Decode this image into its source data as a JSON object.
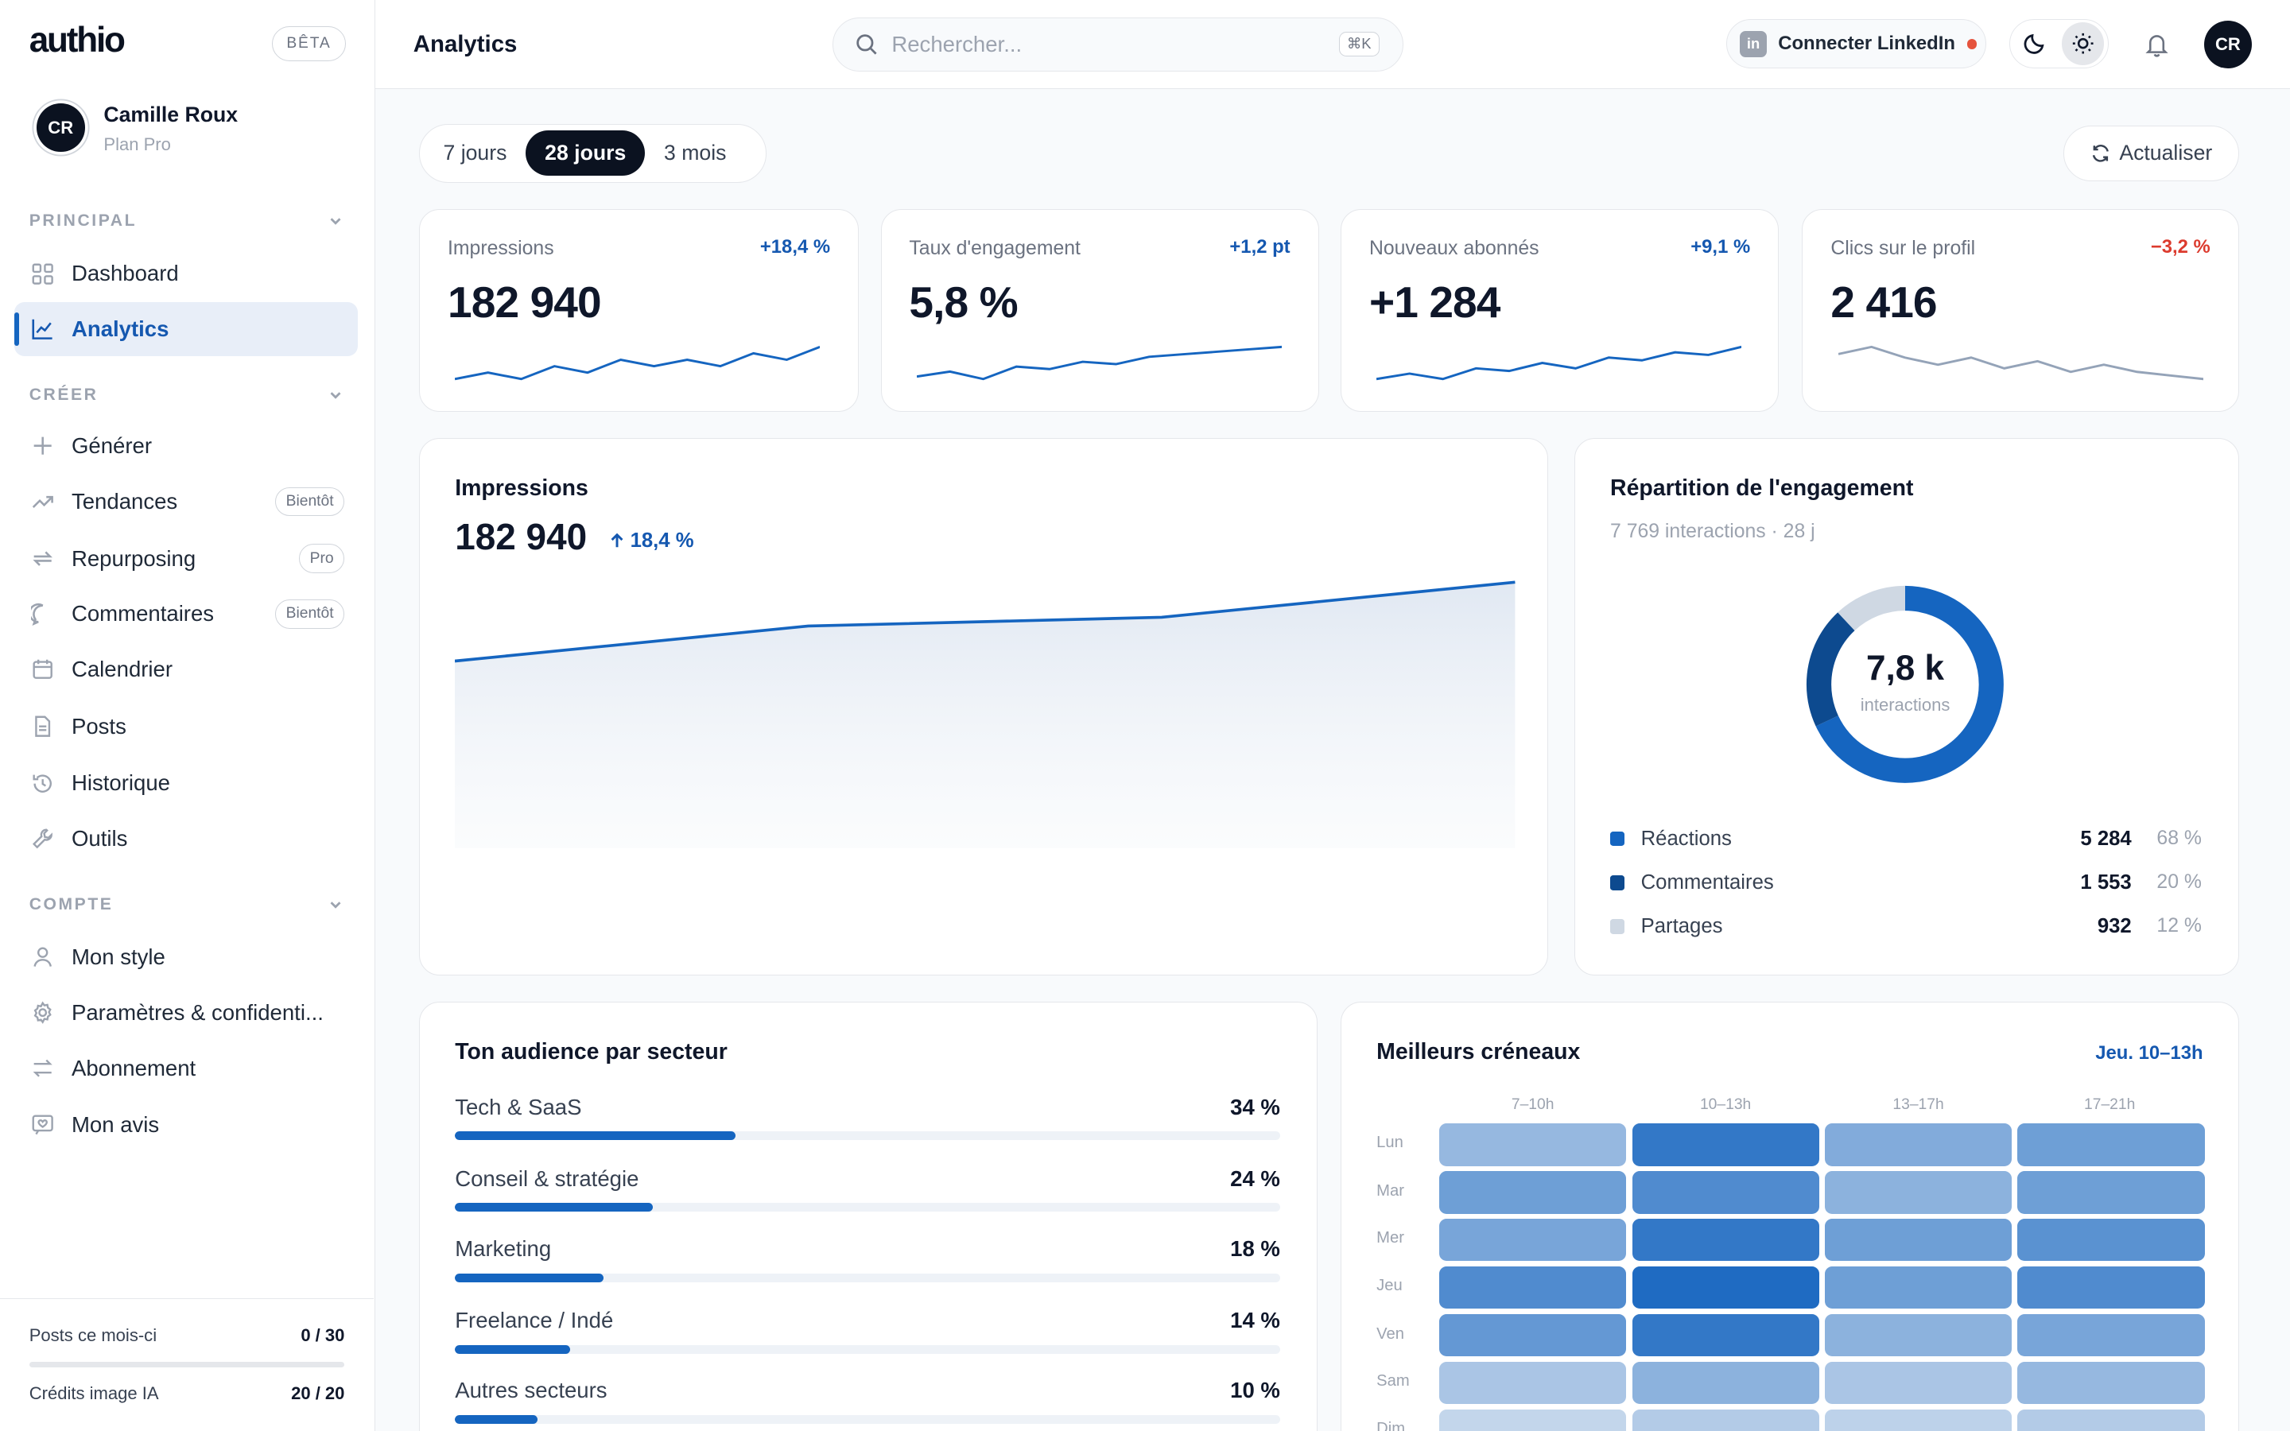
{
  "sidebar": {
    "brand": "authio",
    "beta": "BÊTA",
    "user": {
      "initials": "CR",
      "name": "Camille Roux",
      "plan": "Plan Pro"
    },
    "sections": {
      "principal": "PRINCIPAL",
      "creer": "CRÉER",
      "compte": "COMPTE"
    },
    "items": [
      {
        "label": "Dashboard",
        "icon": "grid-icon"
      },
      {
        "label": "Analytics",
        "icon": "chart-line-icon",
        "active": true
      },
      {
        "label": "Générer",
        "icon": "plus-icon"
      },
      {
        "label": "Tendances",
        "icon": "trending-up-icon",
        "tag": "Bientôt"
      },
      {
        "label": "Repurposing",
        "icon": "repeat-icon",
        "tag": "Pro"
      },
      {
        "label": "Commentaires",
        "icon": "comment-icon",
        "tag": "Bientôt"
      },
      {
        "label": "Calendrier",
        "icon": "calendar-icon"
      },
      {
        "label": "Posts",
        "icon": "file-icon"
      },
      {
        "label": "Historique",
        "icon": "history-icon"
      },
      {
        "label": "Outils",
        "icon": "wrench-icon"
      },
      {
        "label": "Mon style",
        "icon": "user-icon"
      },
      {
        "label": "Paramètres & confidenti...",
        "icon": "gear-icon"
      },
      {
        "label": "Abonnement",
        "icon": "swap-icon"
      },
      {
        "label": "Mon avis",
        "icon": "feedback-icon"
      }
    ],
    "quota": [
      {
        "label": "Posts ce mois-ci",
        "value": "0 / 30",
        "fraction": 0
      },
      {
        "label": "Crédits image IA",
        "value": "20 / 20",
        "fraction": 1
      }
    ]
  },
  "header": {
    "title": "Analytics",
    "search_placeholder": "Rechercher...",
    "shortcut": "⌘K",
    "linkedin_label": "Connecter LinkedIn",
    "avatar": "CR"
  },
  "toolbar": {
    "ranges": [
      "7 jours",
      "28 jours",
      "3 mois"
    ],
    "selected_range": "28 jours",
    "refresh": "Actualiser"
  },
  "kpis": [
    {
      "label": "Impressions",
      "value": "182 940",
      "delta": "+18,4 %",
      "trend": "up",
      "spark": [
        3,
        4,
        3,
        5,
        4,
        6,
        5,
        6,
        5,
        7,
        6,
        8
      ]
    },
    {
      "label": "Taux d'engagement",
      "value": "5,8 %",
      "delta": "+1,2 pt",
      "trend": "up",
      "spark": [
        3,
        4,
        2.5,
        5,
        4.5,
        6,
        5.5,
        7,
        7.5,
        8,
        8.5,
        9
      ]
    },
    {
      "label": "Nouveaux abonnés",
      "value": "+1 284",
      "delta": "+9,1 %",
      "trend": "up",
      "spark": [
        3,
        4,
        3,
        5,
        4.5,
        6,
        5,
        7,
        6.5,
        8,
        7.5,
        9
      ]
    },
    {
      "label": "Clics sur le profil",
      "value": "2 416",
      "delta": "−3,2 %",
      "trend": "down",
      "spark": [
        7,
        8,
        6.5,
        5.5,
        6.5,
        5,
        6,
        4.5,
        5.5,
        4.5,
        4,
        3.5
      ]
    }
  ],
  "impressions": {
    "title": "Impressions",
    "value": "182 940",
    "delta": "18,4 %",
    "color": "#1565c0"
  },
  "engagement": {
    "title": "Répartition de l'engagement",
    "subtitle": "7 769 interactions · 28 j",
    "center_value": "7,8 k",
    "center_label": "interactions",
    "segments": [
      {
        "label": "Réactions",
        "value": "5 284",
        "percent": "68 %",
        "share": 68,
        "color": "#1565c0"
      },
      {
        "label": "Commentaires",
        "value": "1 553",
        "percent": "20 %",
        "share": 20,
        "color": "#0d4a8f"
      },
      {
        "label": "Partages",
        "value": "932",
        "percent": "12 %",
        "share": 12,
        "color": "#cfd8e3"
      }
    ]
  },
  "audience": {
    "title": "Ton audience par secteur",
    "sectors": [
      {
        "label": "Tech & SaaS",
        "percent": "34 %",
        "share": 34
      },
      {
        "label": "Conseil & stratégie",
        "percent": "24 %",
        "share": 24
      },
      {
        "label": "Marketing",
        "percent": "18 %",
        "share": 18
      },
      {
        "label": "Freelance / Indé",
        "percent": "14 %",
        "share": 14
      },
      {
        "label": "Autres secteurs",
        "percent": "10 %",
        "share": 10
      }
    ]
  },
  "slots": {
    "title": "Meilleurs créneaux",
    "best": "Jeu. 10–13h",
    "columns": [
      "7–10h",
      "10–13h",
      "13–17h",
      "17–21h"
    ],
    "days": [
      "Lun",
      "Mar",
      "Mer",
      "Jeu",
      "Ven",
      "Sam",
      "Dim"
    ]
  },
  "chart_data": {
    "type": "heatmap",
    "title": "Meilleurs créneaux",
    "x": [
      "7–10h",
      "10–13h",
      "13–17h",
      "17–21h"
    ],
    "y": [
      "Lun",
      "Mar",
      "Mer",
      "Jeu",
      "Ven",
      "Sam",
      "Dim"
    ],
    "values": [
      [
        0.35,
        0.85,
        0.45,
        0.55
      ],
      [
        0.55,
        0.7,
        0.4,
        0.55
      ],
      [
        0.5,
        0.85,
        0.55,
        0.65
      ],
      [
        0.7,
        0.95,
        0.55,
        0.7
      ],
      [
        0.6,
        0.85,
        0.4,
        0.5
      ],
      [
        0.25,
        0.4,
        0.25,
        0.35
      ],
      [
        0.12,
        0.2,
        0.15,
        0.2
      ]
    ]
  }
}
